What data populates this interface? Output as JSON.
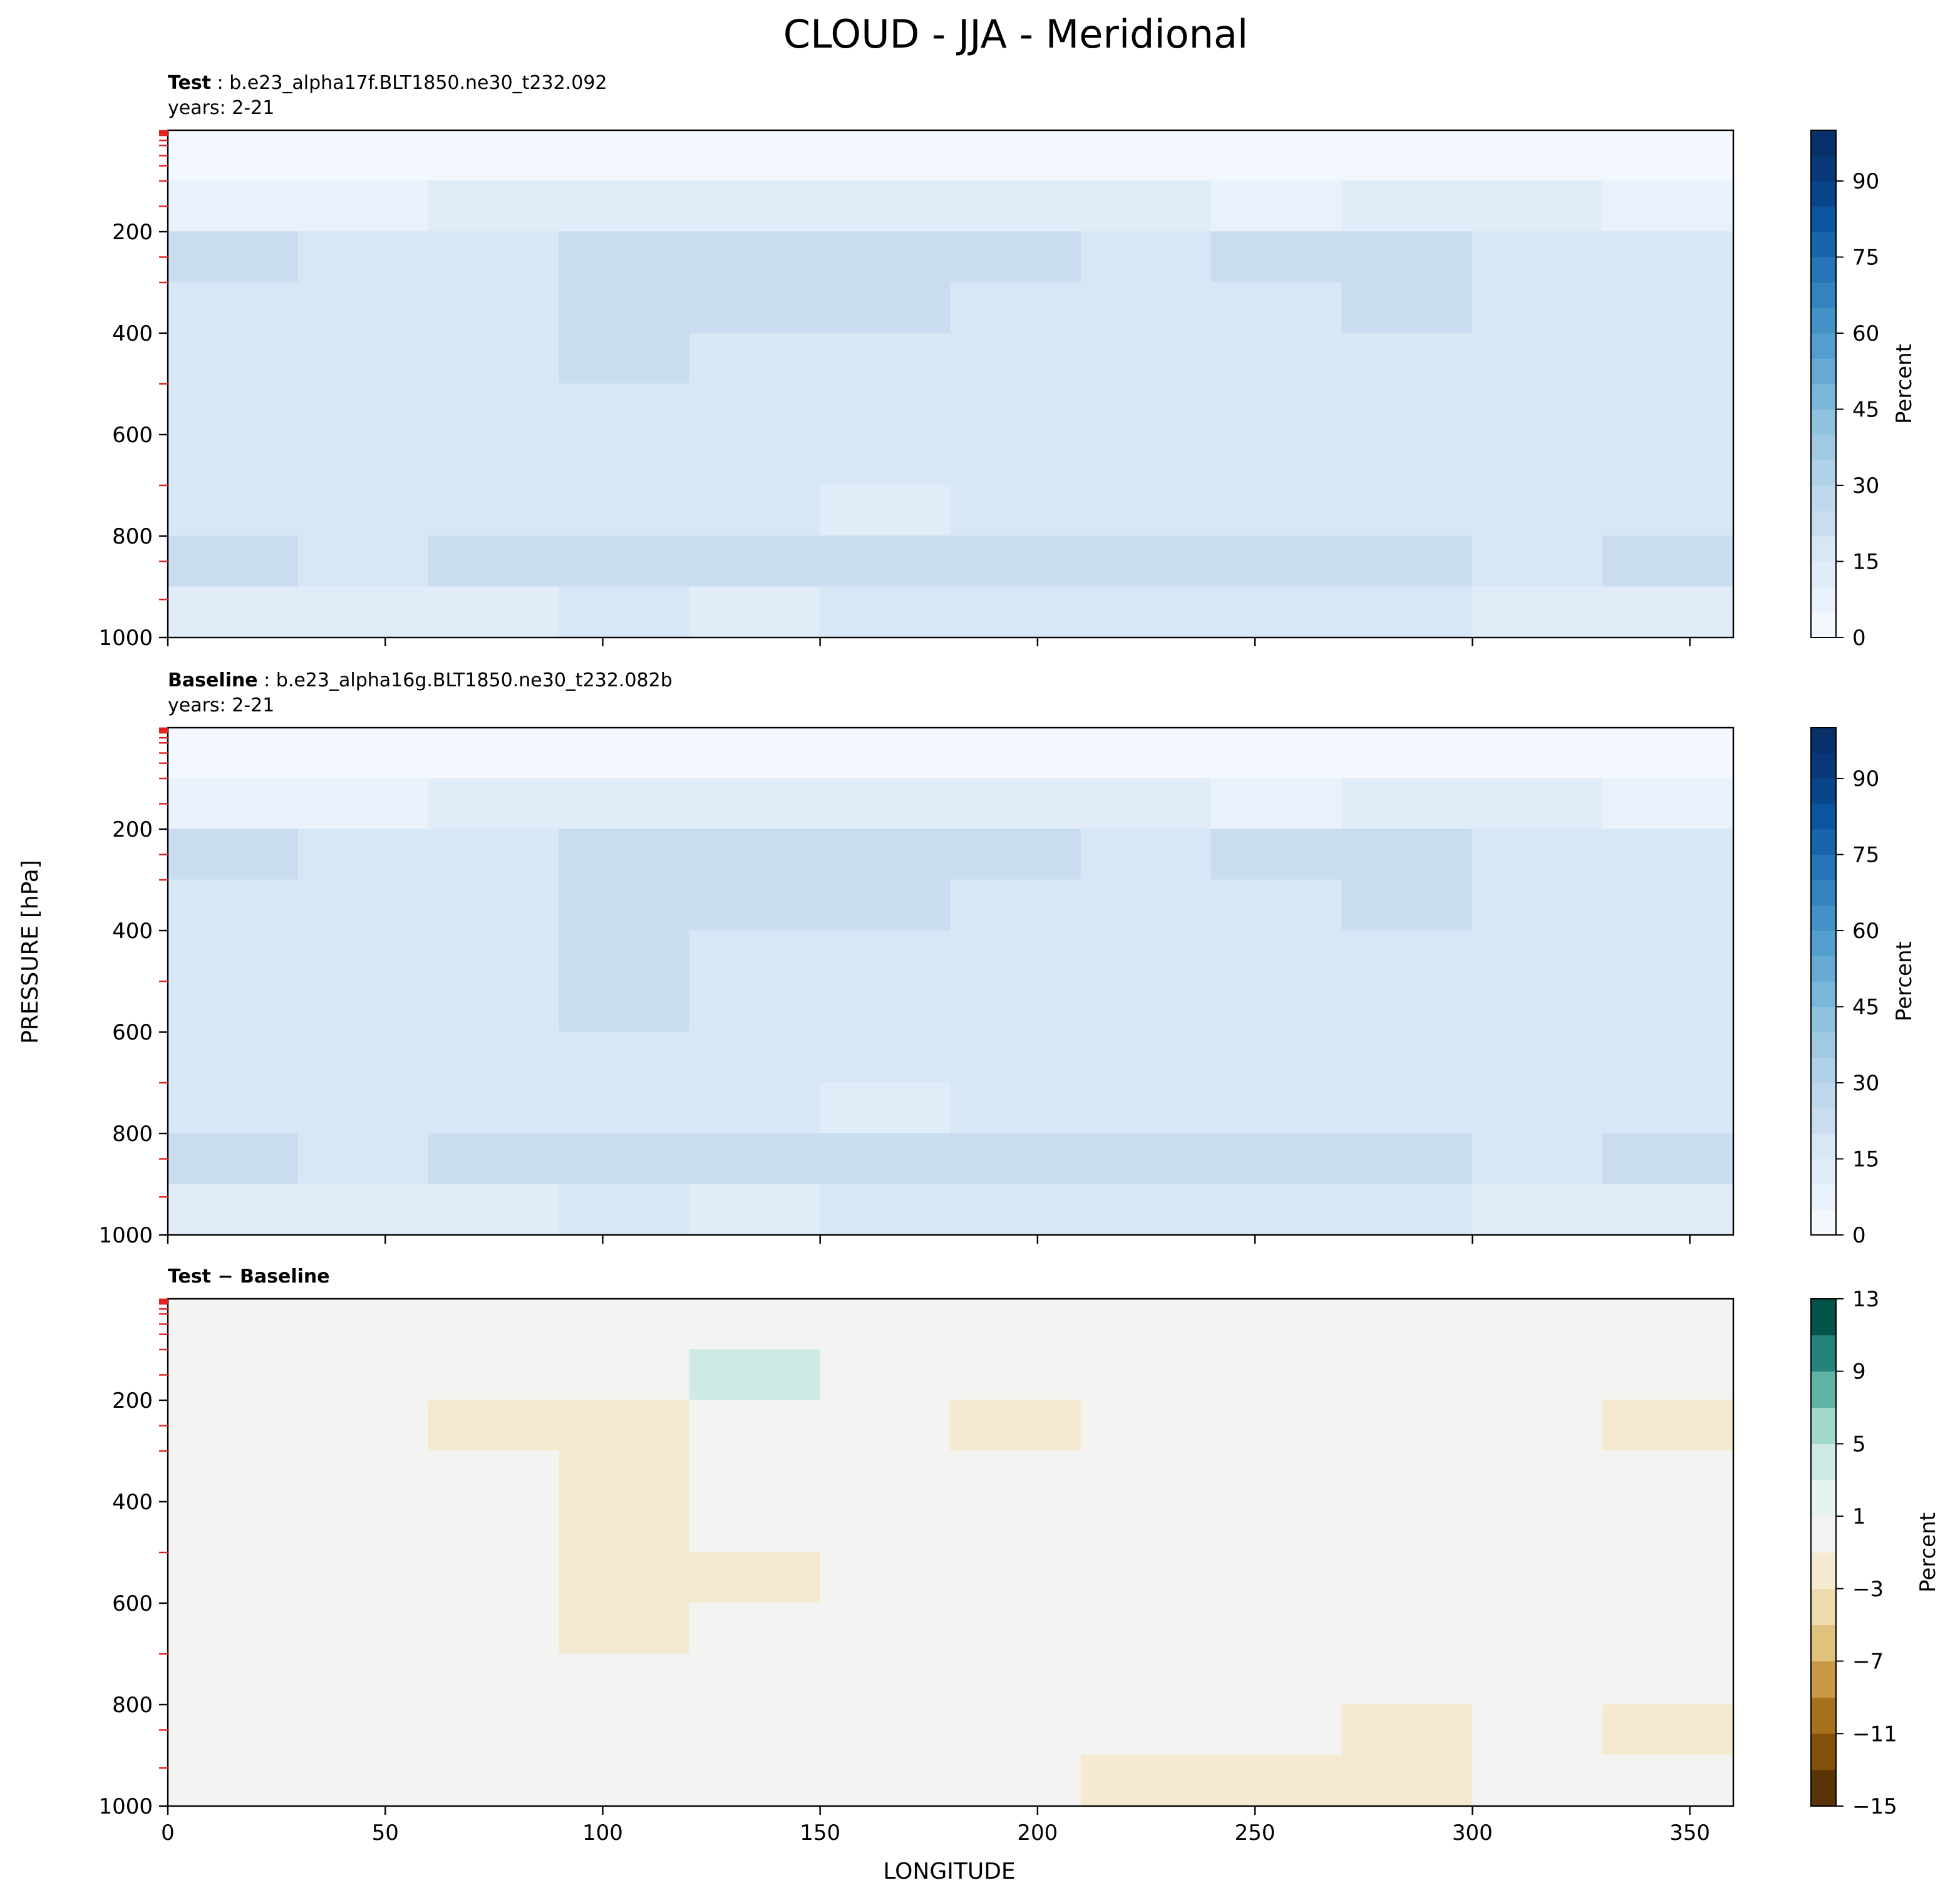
{
  "figure": {
    "title": "CLOUD - JJA - Meridional",
    "xlabel": "LONGITUDE",
    "ylabel": "PRESSURE [hPa]"
  },
  "chart_data": [
    {
      "type": "contourf",
      "title": {
        "bold": "Test",
        "rest": " : b.e23_alpha17f.BLT1850.ne30_t232.092"
      },
      "subtitle": "years: 2-21",
      "x": [
        15,
        45,
        75,
        105,
        135,
        165,
        195,
        225,
        255,
        285,
        315,
        345
      ],
      "y": [
        50,
        150,
        250,
        350,
        450,
        550,
        650,
        750,
        850,
        950
      ],
      "z": [
        [
          2,
          2,
          2,
          2,
          2,
          2,
          2,
          2,
          2,
          2,
          2,
          2
        ],
        [
          8,
          8,
          10,
          12,
          12,
          12,
          12,
          10,
          8,
          10,
          12,
          8
        ],
        [
          21,
          17,
          18,
          22,
          22,
          22,
          21,
          17,
          21,
          23,
          18,
          18
        ],
        [
          19,
          17,
          18,
          22,
          21,
          21,
          19,
          17,
          18,
          21,
          17,
          18
        ],
        [
          17,
          17,
          17,
          21,
          18,
          18,
          18,
          16,
          17,
          17,
          16,
          16
        ],
        [
          17,
          17,
          17,
          19,
          17,
          17,
          17,
          16,
          17,
          17,
          16,
          16
        ],
        [
          17,
          17,
          17,
          17,
          16,
          16,
          16,
          16,
          16,
          17,
          16,
          16
        ],
        [
          16,
          16,
          16,
          17,
          16,
          14,
          16,
          15,
          16,
          17,
          16,
          16
        ],
        [
          21,
          17,
          21,
          23,
          20,
          21,
          23,
          22,
          22,
          22,
          19,
          22
        ],
        [
          12,
          13,
          14,
          15,
          14,
          16,
          16,
          15,
          16,
          17,
          14,
          14
        ]
      ],
      "xlim": [
        0,
        360
      ],
      "xticks": [
        0,
        50,
        100,
        150,
        200,
        250,
        300,
        350
      ],
      "xticklabels": false,
      "ylim": [
        1000,
        0
      ],
      "yticks": [
        200,
        400,
        600,
        800,
        1000
      ],
      "level_ticks": [
        1,
        2,
        3,
        5,
        7,
        10,
        20,
        30,
        50,
        70,
        100,
        150,
        250,
        300,
        500,
        700,
        850,
        925
      ],
      "level_tick_color": "#e02020",
      "colorbar": {
        "label": "Percent",
        "levels": [
          0,
          5,
          10,
          15,
          20,
          25,
          30,
          35,
          40,
          45,
          50,
          55,
          60,
          65,
          70,
          75,
          80,
          85,
          90,
          95,
          100
        ],
        "colors": [
          "#f3f8fe",
          "#e9f2fb",
          "#e0ecf8",
          "#d8e7f5",
          "#cadcef",
          "#bed8ec",
          "#b0d2e8",
          "#a0cae2",
          "#8fc2de",
          "#7ab6d9",
          "#66aad4",
          "#549ecd",
          "#4292c6",
          "#3383be",
          "#2474b7",
          "#1765ab",
          "#0b559f",
          "#08468b",
          "#083877",
          "#08306b"
        ],
        "ticks": [
          0,
          15,
          30,
          45,
          60,
          75,
          90
        ]
      }
    },
    {
      "type": "contourf",
      "title": {
        "bold": "Baseline",
        "rest": " : b.e23_alpha16g.BLT1850.ne30_t232.082b"
      },
      "subtitle": "years: 2-21",
      "x": [
        15,
        45,
        75,
        105,
        135,
        165,
        195,
        225,
        255,
        285,
        315,
        345
      ],
      "y": [
        50,
        150,
        250,
        350,
        450,
        550,
        650,
        750,
        850,
        950
      ],
      "z": [
        [
          2,
          2,
          2,
          2,
          2,
          2,
          2,
          2,
          2,
          2,
          2,
          2
        ],
        [
          8,
          8,
          10,
          12,
          12,
          12,
          12,
          10,
          8,
          10,
          12,
          8
        ],
        [
          21,
          17,
          19,
          23,
          22,
          22,
          21,
          17,
          21,
          23,
          18,
          18
        ],
        [
          19,
          17,
          18,
          22,
          21,
          21,
          19,
          17,
          18,
          21,
          17,
          18
        ],
        [
          17,
          17,
          17,
          21,
          19,
          19,
          18,
          16,
          17,
          17,
          16,
          16
        ],
        [
          17,
          17,
          17,
          20,
          17,
          17,
          17,
          16,
          17,
          17,
          16,
          16
        ],
        [
          17,
          17,
          17,
          17,
          16,
          17,
          16,
          16,
          16,
          17,
          16,
          16
        ],
        [
          16,
          16,
          16,
          17,
          16,
          14,
          16,
          15,
          16,
          17,
          16,
          16
        ],
        [
          21,
          17,
          21,
          23,
          20,
          21,
          23,
          22,
          22,
          22,
          19,
          22
        ],
        [
          12,
          13,
          14,
          15,
          14,
          16,
          16,
          15,
          16,
          18,
          14,
          14
        ]
      ],
      "xlim": [
        0,
        360
      ],
      "xticks": [
        0,
        50,
        100,
        150,
        200,
        250,
        300,
        350
      ],
      "xticklabels": false,
      "ylim": [
        1000,
        0
      ],
      "yticks": [
        200,
        400,
        600,
        800,
        1000
      ],
      "level_ticks": [
        1,
        2,
        3,
        5,
        7,
        10,
        20,
        30,
        50,
        70,
        100,
        150,
        250,
        300,
        500,
        700,
        850,
        925
      ],
      "level_tick_color": "#e02020",
      "colorbar": {
        "label": "Percent",
        "levels": [
          0,
          5,
          10,
          15,
          20,
          25,
          30,
          35,
          40,
          45,
          50,
          55,
          60,
          65,
          70,
          75,
          80,
          85,
          90,
          95,
          100
        ],
        "colors": [
          "#f3f8fe",
          "#e9f2fb",
          "#e0ecf8",
          "#d8e7f5",
          "#cadcef",
          "#bed8ec",
          "#b0d2e8",
          "#a0cae2",
          "#8fc2de",
          "#7ab6d9",
          "#66aad4",
          "#549ecd",
          "#4292c6",
          "#3383be",
          "#2474b7",
          "#1765ab",
          "#0b559f",
          "#08468b",
          "#083877",
          "#08306b"
        ],
        "ticks": [
          0,
          15,
          30,
          45,
          60,
          75,
          90
        ]
      }
    },
    {
      "type": "contourf",
      "title": {
        "bold": "Test − Baseline"
      },
      "x": [
        15,
        45,
        75,
        105,
        135,
        165,
        195,
        225,
        255,
        285,
        315,
        345
      ],
      "y": [
        50,
        150,
        250,
        350,
        450,
        550,
        650,
        750,
        850,
        950
      ],
      "z": [
        [
          0,
          0,
          0,
          0,
          0,
          0,
          0,
          0,
          0,
          0,
          0,
          0
        ],
        [
          0,
          0,
          0,
          0,
          4,
          0,
          0,
          0,
          0,
          0,
          0,
          0
        ],
        [
          0,
          0,
          -2,
          -2,
          0,
          0,
          -2,
          0,
          0,
          0,
          0,
          -2
        ],
        [
          0,
          0,
          0,
          -2,
          0,
          0,
          0,
          0,
          0,
          0,
          0,
          0
        ],
        [
          0,
          0,
          0,
          -2,
          0,
          0,
          0,
          0,
          0,
          0,
          0,
          0
        ],
        [
          0,
          0,
          0,
          -2,
          -2,
          0,
          0,
          0,
          0,
          0,
          0,
          0
        ],
        [
          0,
          0,
          0,
          -2,
          0,
          0,
          0,
          0,
          0,
          0,
          0,
          0
        ],
        [
          0,
          0,
          0,
          0,
          0,
          0,
          0,
          0,
          0,
          0,
          0,
          0
        ],
        [
          0,
          0,
          0,
          0,
          0,
          0,
          0,
          0,
          0,
          -2,
          0,
          -2
        ],
        [
          0,
          0,
          0,
          0,
          0,
          0,
          0,
          -2,
          -2,
          -2,
          0,
          0
        ]
      ],
      "xlim": [
        0,
        360
      ],
      "xticks": [
        0,
        50,
        100,
        150,
        200,
        250,
        300,
        350
      ],
      "xticklabels": true,
      "ylim": [
        1000,
        0
      ],
      "yticks": [
        200,
        400,
        600,
        800,
        1000
      ],
      "level_ticks": [
        1,
        2,
        3,
        5,
        7,
        10,
        20,
        30,
        50,
        70,
        100,
        150,
        250,
        300,
        500,
        700,
        850,
        925
      ],
      "level_tick_color": "#e02020",
      "colorbar": {
        "label": "Percent",
        "levels": [
          -15,
          -13,
          -11,
          -9,
          -7,
          -5,
          -3,
          -1,
          1,
          3,
          5,
          7,
          9,
          11,
          13
        ],
        "colors": [
          "#5a3406",
          "#83500c",
          "#a8701d",
          "#c99844",
          "#dfc27d",
          "#eedcae",
          "#f5e9d0",
          "#f3f4f2",
          "#e6f3f0",
          "#cdeae4",
          "#a2d8cc",
          "#5fb2a4",
          "#25837a",
          "#04544a"
        ],
        "ticks": [
          {
            "value": -15,
            "label": "−15"
          },
          {
            "value": -11,
            "label": "−11"
          },
          {
            "value": -7,
            "label": "−7"
          },
          {
            "value": -3,
            "label": "−3"
          },
          1,
          5,
          9,
          13
        ]
      }
    }
  ]
}
